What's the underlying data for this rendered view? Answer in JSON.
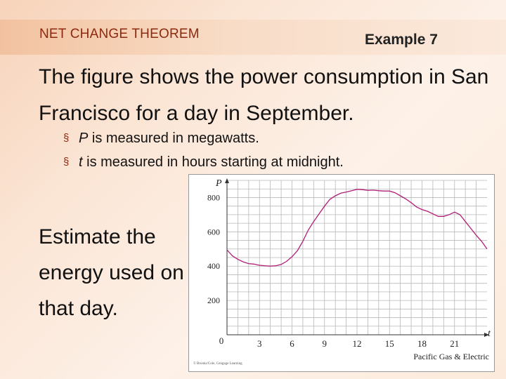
{
  "header": {
    "section_title": "NET CHANGE THEOREM",
    "example_label": "Example 7"
  },
  "main_text": "The figure shows the power consumption in San Francisco for a day in September.",
  "bullets": [
    {
      "var": "P",
      "text": " is measured in megawatts."
    },
    {
      "var": "t",
      "text": " is measured in hours starting at midnight."
    }
  ],
  "question": "Estimate the energy used on that day.",
  "colors": {
    "accent": "#8b2a10",
    "curve": "#b01e78",
    "grid": "#b8b8b8"
  },
  "chart_data": {
    "type": "line",
    "xlabel": "t",
    "ylabel": "P",
    "xlim": [
      0,
      24
    ],
    "ylim": [
      0,
      900
    ],
    "x_ticks": [
      3,
      6,
      9,
      12,
      15,
      18,
      21
    ],
    "y_ticks": [
      200,
      400,
      600,
      800
    ],
    "origin_label": "0",
    "grid": true,
    "source": "Pacific Gas & Electric",
    "copyright": "© Brooks/Cole, Cengage Learning",
    "series": [
      {
        "x": [
          0,
          0.5,
          1,
          1.5,
          2,
          2.5,
          3,
          3.5,
          4,
          4.5,
          5,
          5.5,
          6,
          6.5,
          7,
          7.5,
          8,
          8.5,
          9,
          9.5,
          10,
          10.5,
          11,
          11.5,
          12,
          12.5,
          13,
          13.5,
          14,
          14.5,
          15,
          15.5,
          16,
          16.5,
          17,
          17.5,
          18,
          18.5,
          19,
          19.5,
          20,
          20.5,
          21,
          21.5,
          22,
          22.5,
          23,
          23.5,
          24
        ],
        "y": [
          495,
          460,
          440,
          425,
          415,
          412,
          405,
          402,
          400,
          402,
          410,
          428,
          455,
          490,
          545,
          610,
          660,
          705,
          750,
          790,
          810,
          825,
          832,
          840,
          848,
          846,
          842,
          843,
          840,
          838,
          838,
          828,
          810,
          792,
          770,
          745,
          730,
          720,
          705,
          690,
          690,
          700,
          715,
          700,
          660,
          620,
          580,
          545,
          500
        ]
      }
    ]
  }
}
